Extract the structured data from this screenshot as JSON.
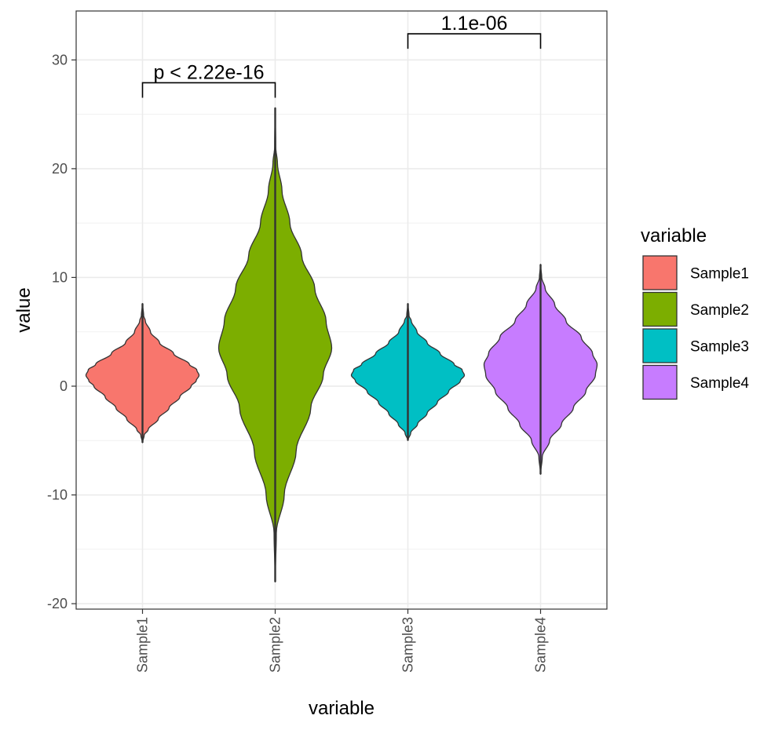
{
  "chart_data": {
    "type": "violin",
    "categories": [
      "Sample1",
      "Sample2",
      "Sample3",
      "Sample4"
    ],
    "xlabel": "variable",
    "ylabel": "value",
    "ylim": [
      -20.5,
      34.5
    ],
    "yticks": [
      -20,
      -10,
      0,
      10,
      20,
      30
    ],
    "ytick_labels": [
      "-20",
      "-10",
      "0",
      "10",
      "20",
      "30"
    ],
    "grid": true,
    "legend": {
      "title": "variable",
      "position": "right",
      "entries": [
        "Sample1",
        "Sample2",
        "Sample3",
        "Sample4"
      ]
    },
    "series": [
      {
        "category": "Sample1",
        "color": "#F8766D",
        "min": -5.2,
        "max": 7.6,
        "profile": [
          [
            -5.2,
            0.0
          ],
          [
            -4.5,
            0.03
          ],
          [
            -4.0,
            0.1
          ],
          [
            -3.0,
            0.28
          ],
          [
            -2.0,
            0.47
          ],
          [
            -1.0,
            0.66
          ],
          [
            0.0,
            0.86
          ],
          [
            0.5,
            0.95
          ],
          [
            1.0,
            1.0
          ],
          [
            1.5,
            0.96
          ],
          [
            2.0,
            0.83
          ],
          [
            3.0,
            0.55
          ],
          [
            4.0,
            0.3
          ],
          [
            5.0,
            0.14
          ],
          [
            6.0,
            0.05
          ],
          [
            6.5,
            0.02
          ],
          [
            7.6,
            0.0
          ]
        ]
      },
      {
        "category": "Sample2",
        "color": "#7CAE00",
        "min": -18.0,
        "max": 25.6,
        "profile": [
          [
            -18.0,
            0.0
          ],
          [
            -13.5,
            0.02
          ],
          [
            -10.0,
            0.16
          ],
          [
            -6.0,
            0.37
          ],
          [
            -2.0,
            0.63
          ],
          [
            1.0,
            0.85
          ],
          [
            3.5,
            1.0
          ],
          [
            6.0,
            0.9
          ],
          [
            9.0,
            0.7
          ],
          [
            12.0,
            0.47
          ],
          [
            15.0,
            0.26
          ],
          [
            18.0,
            0.12
          ],
          [
            20.5,
            0.04
          ],
          [
            22.0,
            0.01
          ],
          [
            25.6,
            0.0
          ]
        ]
      },
      {
        "category": "Sample3",
        "color": "#00BFC4",
        "min": -5.0,
        "max": 7.6,
        "profile": [
          [
            -5.0,
            0.0
          ],
          [
            -4.3,
            0.05
          ],
          [
            -3.5,
            0.17
          ],
          [
            -2.5,
            0.34
          ],
          [
            -1.5,
            0.52
          ],
          [
            -0.5,
            0.72
          ],
          [
            0.5,
            0.93
          ],
          [
            1.0,
            1.0
          ],
          [
            1.5,
            0.96
          ],
          [
            2.0,
            0.82
          ],
          [
            3.0,
            0.57
          ],
          [
            4.0,
            0.34
          ],
          [
            5.0,
            0.16
          ],
          [
            6.0,
            0.06
          ],
          [
            6.5,
            0.02
          ],
          [
            7.6,
            0.0
          ]
        ]
      },
      {
        "category": "Sample4",
        "color": "#C77CFF",
        "min": -8.1,
        "max": 11.2,
        "profile": [
          [
            -8.1,
            0.0
          ],
          [
            -6.5,
            0.03
          ],
          [
            -5.0,
            0.16
          ],
          [
            -3.5,
            0.37
          ],
          [
            -2.0,
            0.58
          ],
          [
            -0.5,
            0.8
          ],
          [
            1.0,
            0.97
          ],
          [
            2.0,
            1.0
          ],
          [
            3.0,
            0.92
          ],
          [
            4.5,
            0.72
          ],
          [
            6.0,
            0.45
          ],
          [
            7.5,
            0.25
          ],
          [
            9.0,
            0.08
          ],
          [
            10.0,
            0.02
          ],
          [
            11.2,
            0.0
          ]
        ]
      }
    ],
    "annotations": [
      {
        "label": "p < 2.22e-16",
        "from": "Sample1",
        "to": "Sample2",
        "y": 27.9
      },
      {
        "label": "1.1e-06",
        "from": "Sample3",
        "to": "Sample4",
        "y": 32.4
      }
    ]
  }
}
